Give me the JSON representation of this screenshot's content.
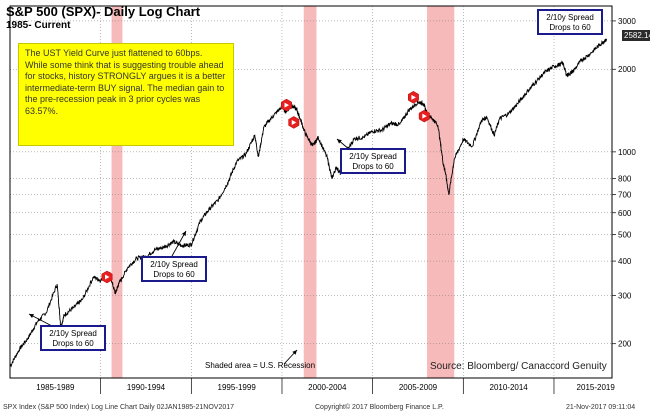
{
  "chart_data": {
    "type": "line",
    "title": "S&P 500 (SPX)- Daily Log Chart",
    "subtitle": "1985- Current",
    "scale": "log",
    "ylim": [
      150,
      3400
    ],
    "xlim": [
      1985.0,
      2018.2
    ],
    "y_ticks": [
      200,
      300,
      400,
      500,
      600,
      700,
      800,
      1000,
      2000,
      3000
    ],
    "x_tick_labels": [
      "1985-1989",
      "1990-1994",
      "1995-1999",
      "2000-2004",
      "2005-2009",
      "2010-2014",
      "2015-2019"
    ],
    "x_tick_years": [
      1987.5,
      1992.5,
      1997.5,
      2002.5,
      2007.5,
      2012.5,
      2017.3
    ],
    "x_dividers": [
      1990.0,
      1995.0,
      2000.0,
      2005.0,
      2010.0,
      2015.0
    ],
    "recessions": [
      {
        "start": 1990.6,
        "end": 1991.2
      },
      {
        "start": 2001.2,
        "end": 2001.9
      },
      {
        "start": 2008.0,
        "end": 2009.5
      }
    ],
    "series": [
      {
        "name": "SPX",
        "x": [
          1985.0,
          1985.5,
          1986.0,
          1986.5,
          1987.0,
          1987.6,
          1987.8,
          1988.0,
          1988.5,
          1989.0,
          1989.6,
          1990.0,
          1990.5,
          1990.8,
          1991.0,
          1991.5,
          1992.0,
          1992.5,
          1993.0,
          1993.5,
          1994.0,
          1994.5,
          1995.0,
          1995.5,
          1996.0,
          1996.5,
          1997.0,
          1997.5,
          1998.0,
          1998.5,
          1998.7,
          1999.0,
          1999.5,
          2000.0,
          2000.2,
          2000.5,
          2000.8,
          2001.0,
          2001.3,
          2001.7,
          2002.0,
          2002.5,
          2002.75,
          2003.0,
          2003.25,
          2003.5,
          2004.0,
          2004.5,
          2005.0,
          2005.5,
          2006.0,
          2006.5,
          2007.0,
          2007.5,
          2007.8,
          2008.0,
          2008.3,
          2008.6,
          2008.9,
          2009.0,
          2009.2,
          2009.5,
          2010.0,
          2010.5,
          2011.0,
          2011.3,
          2011.7,
          2012.0,
          2012.5,
          2013.0,
          2013.5,
          2014.0,
          2014.5,
          2015.0,
          2015.5,
          2015.7,
          2016.0,
          2016.5,
          2017.0,
          2017.5,
          2017.9
        ],
        "values": [
          165,
          190,
          210,
          240,
          260,
          330,
          230,
          255,
          270,
          290,
          350,
          340,
          360,
          305,
          330,
          380,
          410,
          415,
          440,
          450,
          470,
          455,
          460,
          560,
          620,
          670,
          770,
          920,
          980,
          1150,
          960,
          1230,
          1350,
          1460,
          1400,
          1480,
          1430,
          1320,
          1160,
          1050,
          1130,
          950,
          800,
          880,
          830,
          990,
          1120,
          1130,
          1190,
          1200,
          1270,
          1260,
          1420,
          1520,
          1500,
          1380,
          1320,
          1250,
          900,
          850,
          700,
          940,
          1110,
          1050,
          1300,
          1340,
          1150,
          1320,
          1380,
          1500,
          1650,
          1800,
          1950,
          2050,
          2100,
          1900,
          1950,
          2150,
          2280,
          2450,
          2582
        ]
      }
    ],
    "markers": [
      {
        "x": 1990.35,
        "y": 350
      },
      {
        "x": 2000.25,
        "y": 1480
      },
      {
        "x": 2000.65,
        "y": 1280
      },
      {
        "x": 2007.25,
        "y": 1580
      },
      {
        "x": 2007.85,
        "y": 1350
      }
    ],
    "last_value": "2582.14"
  },
  "note": {
    "text": "The UST Yield Curve just flattened to 60bps.  While some think that is suggesting trouble ahead for stocks, history STRONGLY argues it is a better intermediate-term BUY signal.  The median gain to the pre-recession peak in 3 prior cycles was 63.57%."
  },
  "callouts": [
    {
      "line1": "2/10y Spread",
      "line2": "Drops to 60"
    },
    {
      "line1": "2/10y Spread",
      "line2": "Drops to 60"
    },
    {
      "line1": "2/10y Spread",
      "line2": "Drops to 60"
    },
    {
      "line1": "2/10y Spread",
      "line2": "Drops to 60"
    }
  ],
  "labels": {
    "shaded_area": "Shaded area = U.S. Recession",
    "source": "Source: Bloomberg/ Canaccord Genuity"
  },
  "footer": {
    "left": "SPX Index (S&P 500 Index) Log Line Chart  Daily 02JAN1985-21NOV2017",
    "center": "Copyright© 2017 Bloomberg Finance L.P.",
    "right": "21-Nov-2017 09:11:04"
  },
  "colors": {
    "line": "#000000",
    "recession": "#f4a3a3",
    "marker": "#e62020",
    "callout_border": "#1a1a8c",
    "note_bg": "#ffff00"
  }
}
